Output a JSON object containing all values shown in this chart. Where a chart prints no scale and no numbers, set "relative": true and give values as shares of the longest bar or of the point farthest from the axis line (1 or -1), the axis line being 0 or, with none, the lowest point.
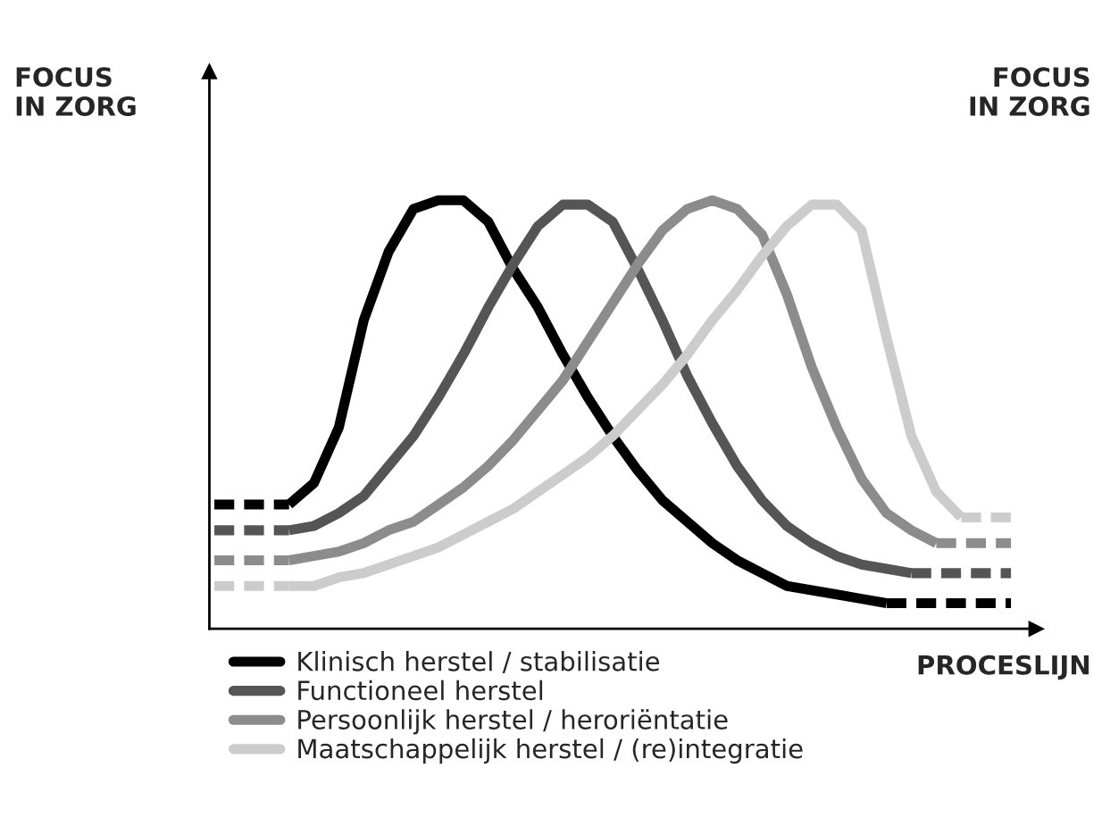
{
  "chart_data": {
    "type": "line",
    "relative": true,
    "ylabel": "FOCUS\nIN ZORG",
    "xlabel": "PROCESLIJN",
    "annotations": [
      "FOCUS\nIN ZORG"
    ],
    "legend": "bottom left",
    "marker": "none",
    "categories": [
      null,
      null,
      null,
      null,
      null,
      null,
      null,
      null,
      null,
      null,
      null,
      null,
      null,
      null,
      null,
      null,
      null,
      null,
      null,
      null,
      null,
      null,
      null,
      null,
      null,
      null,
      null,
      null,
      null,
      null,
      null,
      null,
      null
    ],
    "series": [
      {
        "name": "Klinisch herstel / stabilisatie",
        "color": "#000000",
        "line_style": "solid",
        "values": [
          null,
          null,
          null,
          0.29,
          0.34,
          0.47,
          0.72,
          0.88,
          0.98,
          1.0,
          1.0,
          0.95,
          0.84,
          0.75,
          0.64,
          0.54,
          0.45,
          0.37,
          0.3,
          0.25,
          0.2,
          0.16,
          0.13,
          0.1,
          0.09,
          0.08,
          0.07,
          0.06,
          null,
          null,
          null,
          null,
          null
        ]
      },
      {
        "name": "Functioneel herstel",
        "color": "#555555",
        "line_style": "solid",
        "values": [
          null,
          null,
          null,
          0.23,
          0.24,
          0.27,
          0.31,
          0.38,
          0.45,
          0.54,
          0.64,
          0.75,
          0.85,
          0.94,
          0.99,
          0.99,
          0.95,
          0.84,
          0.72,
          0.59,
          0.48,
          0.38,
          0.3,
          0.24,
          0.2,
          0.17,
          0.15,
          0.14,
          0.13,
          null,
          null,
          null,
          null
        ]
      },
      {
        "name": "Persoonlijk herstel / heroriëntatie",
        "color": "#8c8c8c",
        "line_style": "solid",
        "values": [
          null,
          null,
          null,
          0.16,
          0.17,
          0.18,
          0.2,
          0.23,
          0.25,
          0.29,
          0.33,
          0.38,
          0.44,
          0.51,
          0.58,
          0.67,
          0.76,
          0.85,
          0.93,
          0.98,
          1.0,
          0.98,
          0.92,
          0.78,
          0.61,
          0.47,
          0.35,
          0.27,
          0.23,
          0.2,
          null,
          null,
          null
        ]
      },
      {
        "name": "Maatschappelijk herstel / (re)integratie",
        "color": "#cccccc",
        "line_style": "solid",
        "values": [
          null,
          null,
          null,
          0.1,
          0.1,
          0.12,
          0.13,
          0.15,
          0.17,
          0.19,
          0.22,
          0.25,
          0.28,
          0.32,
          0.36,
          0.4,
          0.45,
          0.51,
          0.57,
          0.64,
          0.72,
          0.79,
          0.87,
          0.94,
          0.99,
          0.99,
          0.93,
          0.68,
          0.45,
          0.32,
          0.26,
          null,
          null
        ]
      },
      {
        "color": "#000000",
        "line_style": "dashed",
        "values": [
          0.29,
          0.29,
          0.29,
          0.29,
          null,
          null,
          null,
          null,
          null,
          null,
          null,
          null,
          null,
          null,
          null,
          null,
          null,
          null,
          null,
          null,
          null,
          null,
          null,
          null,
          null,
          null,
          null,
          0.06,
          0.06,
          0.06,
          0.06,
          0.06,
          0.06
        ]
      },
      {
        "color": "#555555",
        "line_style": "dashed",
        "values": [
          0.23,
          0.23,
          0.23,
          0.23,
          null,
          null,
          null,
          null,
          null,
          null,
          null,
          null,
          null,
          null,
          null,
          null,
          null,
          null,
          null,
          null,
          null,
          null,
          null,
          null,
          null,
          null,
          null,
          null,
          0.13,
          0.13,
          0.13,
          0.13,
          0.13
        ]
      },
      {
        "color": "#8c8c8c",
        "line_style": "dashed",
        "values": [
          0.16,
          0.16,
          0.16,
          0.16,
          null,
          null,
          null,
          null,
          null,
          null,
          null,
          null,
          null,
          null,
          null,
          null,
          null,
          null,
          null,
          null,
          null,
          null,
          null,
          null,
          null,
          null,
          null,
          null,
          null,
          0.2,
          0.2,
          0.2,
          0.2
        ]
      },
      {
        "color": "#cccccc",
        "line_style": "dashed",
        "values": [
          0.1,
          0.1,
          0.1,
          0.1,
          null,
          null,
          null,
          null,
          null,
          null,
          null,
          null,
          null,
          null,
          null,
          null,
          null,
          null,
          null,
          null,
          null,
          null,
          null,
          null,
          null,
          null,
          null,
          null,
          null,
          null,
          0.26,
          0.26,
          0.26
        ]
      }
    ]
  }
}
